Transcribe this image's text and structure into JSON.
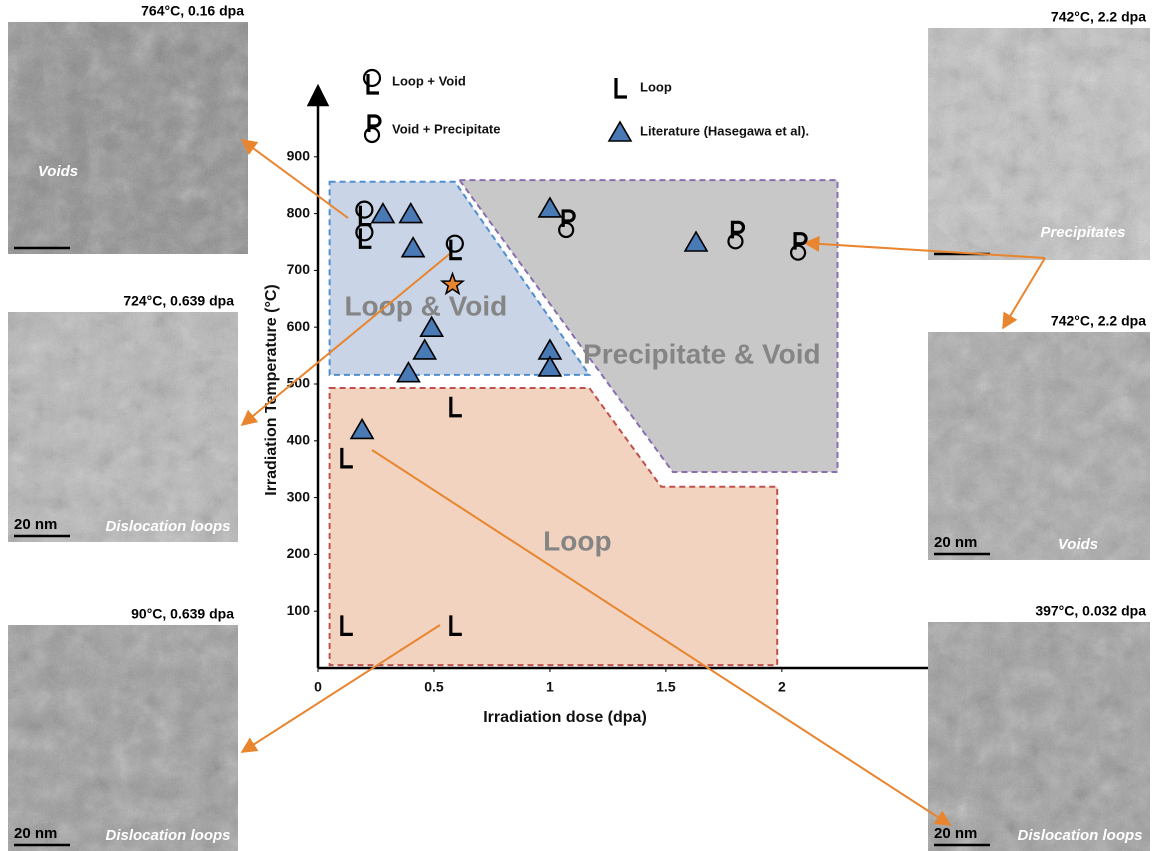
{
  "chart_data": {
    "type": "scatter",
    "xlabel": "Irradiation dose (dpa)",
    "ylabel": "Irradiation Temperature (°C)",
    "xlim": [
      0,
      2.6
    ],
    "ylim": [
      0,
      1000
    ],
    "xticks": [
      0,
      0.5,
      1,
      1.5,
      2
    ],
    "yticks": [
      100,
      200,
      300,
      400,
      500,
      600,
      700,
      800,
      900
    ],
    "series": [
      {
        "name": "Loop + Void",
        "marker": "loop-void",
        "color": "#000000",
        "x": [
          0.2,
          0.2,
          0.59
        ],
        "values": [
          800,
          760,
          740
        ]
      },
      {
        "name": "Void + Precipitate",
        "marker": "void-precipitate",
        "color": "#000000",
        "x": [
          1.07,
          1.8,
          2.07
        ],
        "values": [
          780,
          760,
          740
        ]
      },
      {
        "name": "Loop",
        "marker": "loop",
        "color": "#000000",
        "x": [
          0.59,
          0.12,
          0.12,
          0.59
        ],
        "values": [
          460,
          370,
          75,
          75
        ]
      },
      {
        "name": "Literature (Hasegawa et al).",
        "marker": "triangle",
        "color": "#4a7ab5",
        "x": [
          0.28,
          0.4,
          0.41,
          0.49,
          0.46,
          0.39,
          1.0,
          1.63,
          1.0,
          1.0,
          0.19
        ],
        "values": [
          800,
          800,
          740,
          600,
          560,
          520,
          810,
          750,
          560,
          530,
          420
        ]
      },
      {
        "marker": "star",
        "color": "#e8852e",
        "x": [
          0.58
        ],
        "values": [
          675
        ]
      }
    ],
    "regions": [
      {
        "label": "Loop & Void",
        "color": "#c9d4e6",
        "edge": "#4f8fd0",
        "points": [
          [
            0.05,
            856
          ],
          [
            0.59,
            856
          ],
          [
            1.17,
            516
          ],
          [
            0.05,
            516
          ]
        ]
      },
      {
        "label": "Precipitate & Void",
        "color": "#c8c8c8",
        "edge": "#8a6fb0",
        "points": [
          [
            0.61,
            859
          ],
          [
            2.24,
            859
          ],
          [
            2.24,
            345
          ],
          [
            1.53,
            345
          ]
        ]
      },
      {
        "label": "Loop",
        "color": "#f2d3bf",
        "edge": "#c0504d",
        "points": [
          [
            0.05,
            493
          ],
          [
            1.17,
            493
          ],
          [
            1.48,
            319
          ],
          [
            1.98,
            319
          ],
          [
            1.98,
            5
          ],
          [
            0.05,
            5
          ]
        ]
      }
    ]
  },
  "panels": [
    {
      "caption": "764°C, 0.16 dpa",
      "label": "Voids"
    },
    {
      "caption": "724°C, 0.639 dpa",
      "label": "Dislocation loops",
      "scale": "20 nm"
    },
    {
      "caption": "90°C, 0.639 dpa",
      "label": "Dislocation loops",
      "scale": "20 nm"
    },
    {
      "caption": "742°C, 2.2 dpa",
      "label": "Precipitates"
    },
    {
      "caption": "742°C, 2.2 dpa",
      "label": "Voids",
      "scale": "20 nm"
    },
    {
      "caption": "397°C, 0.032 dpa",
      "label": "Dislocation loops",
      "scale": "20 nm"
    }
  ]
}
